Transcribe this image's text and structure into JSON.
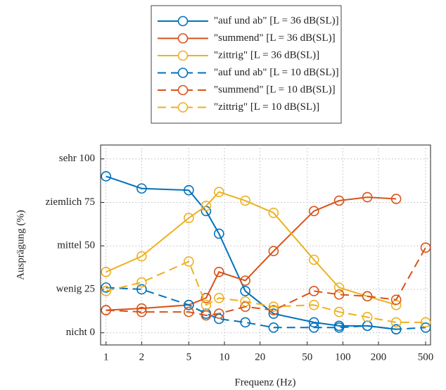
{
  "chart_data": {
    "type": "line",
    "x_label": "Frequenz (Hz)",
    "y_label": "Ausprägung (%)",
    "x": [
      1,
      2,
      5,
      7,
      9,
      15,
      26,
      57,
      93,
      161,
      282,
      500
    ],
    "xlim": [
      0.9,
      550
    ],
    "xticks": [
      1,
      2,
      5,
      10,
      20,
      50,
      100,
      200,
      500
    ],
    "xscale": "log",
    "ylim": [
      -7,
      108
    ],
    "yticks": [
      {
        "value": 0,
        "label": "nicht 0"
      },
      {
        "value": 25,
        "label": "wenig 25"
      },
      {
        "value": 50,
        "label": "mittel 50"
      },
      {
        "value": 75,
        "label": "ziemlich 75"
      },
      {
        "value": 100,
        "label": "sehr 100"
      }
    ],
    "grid": true,
    "legend": "top",
    "series": [
      {
        "name": "\"auf und ab\" [L = 36 dB(SL)]",
        "color": "#0072BD",
        "line_style": "solid",
        "values": [
          90,
          83,
          82,
          70,
          57,
          24,
          11,
          6,
          4,
          4,
          2,
          null
        ]
      },
      {
        "name": "\"summend\" [L = 36 dB(SL)]",
        "color": "#D95319",
        "line_style": "solid",
        "values": [
          13,
          14,
          16,
          20,
          35,
          30,
          47,
          70,
          76,
          78,
          77,
          null
        ]
      },
      {
        "name": "\"zittrig\" [L = 36 dB(SL)]",
        "color": "#EDB120",
        "line_style": "solid",
        "values": [
          35,
          44,
          66,
          73,
          81,
          76,
          69,
          42,
          26,
          21,
          16,
          null
        ]
      },
      {
        "name": "\"auf und ab\" [L = 10 dB(SL)]",
        "color": "#0072BD",
        "line_style": "dashed",
        "values": [
          26,
          25,
          16,
          11,
          8,
          6,
          3,
          3,
          3,
          4,
          2,
          3
        ]
      },
      {
        "name": "\"summend\" [L = 10 dB(SL)]",
        "color": "#D95319",
        "line_style": "dashed",
        "values": [
          13,
          12,
          12,
          10,
          11,
          15,
          13,
          24,
          22,
          21,
          19,
          49
        ]
      },
      {
        "name": "\"zittrig\" [L = 10 dB(SL)]",
        "color": "#EDB120",
        "line_style": "dashed",
        "values": [
          24,
          29,
          41,
          16,
          20,
          18,
          15,
          16,
          12,
          9,
          6,
          6
        ]
      }
    ]
  }
}
